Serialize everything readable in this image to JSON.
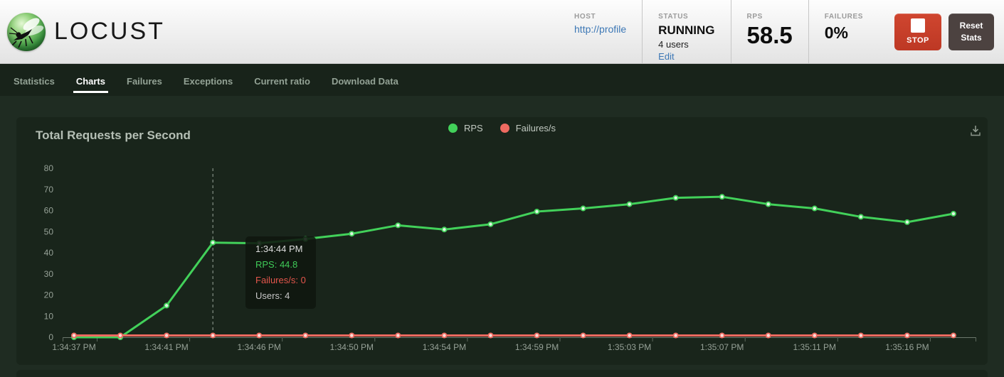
{
  "header": {
    "logo_text": "LOCUST",
    "host": {
      "label": "HOST",
      "value": "http://profile"
    },
    "status": {
      "label": "STATUS",
      "value": "RUNNING",
      "users": "4 users",
      "edit": "Edit"
    },
    "rps": {
      "label": "RPS",
      "value": "58.5"
    },
    "failures": {
      "label": "FAILURES",
      "value": "0%"
    },
    "stop_button": "STOP",
    "reset_button": "Reset Stats"
  },
  "nav": {
    "tabs": [
      {
        "label": "Statistics",
        "active": false
      },
      {
        "label": "Charts",
        "active": true
      },
      {
        "label": "Failures",
        "active": false
      },
      {
        "label": "Exceptions",
        "active": false
      },
      {
        "label": "Current ratio",
        "active": false
      },
      {
        "label": "Download Data",
        "active": false
      }
    ]
  },
  "chart": {
    "title": "Total Requests per Second",
    "legend": [
      {
        "label": "RPS",
        "color": "#42d15a"
      },
      {
        "label": "Failures/s",
        "color": "#ee6a60"
      }
    ],
    "tooltip": {
      "time": "1:34:44 PM",
      "rps_line": "RPS: 44.8",
      "failures_line": "Failures/s: 0",
      "users_line": "Users: 4"
    }
  },
  "chart_data": {
    "type": "line",
    "title": "Total Requests per Second",
    "x": [
      "1:34:37 PM",
      "1:34:39 PM",
      "1:34:41 PM",
      "1:34:44 PM",
      "1:34:46 PM",
      "1:34:48 PM",
      "1:34:50 PM",
      "1:34:52 PM",
      "1:34:54 PM",
      "1:34:57 PM",
      "1:34:59 PM",
      "1:35:01 PM",
      "1:35:03 PM",
      "1:35:05 PM",
      "1:35:07 PM",
      "1:35:09 PM",
      "1:35:11 PM",
      "1:35:14 PM",
      "1:35:16 PM",
      "1:35:18 PM"
    ],
    "x_axis_label_indices": [
      0,
      2,
      4,
      6,
      8,
      10,
      12,
      14,
      16,
      18
    ],
    "series": [
      {
        "name": "RPS",
        "color": "#42d15a",
        "values": [
          0,
          0,
          15,
          44.8,
          44.5,
          46.5,
          49,
          53,
          51,
          53.5,
          59.5,
          61,
          63,
          66,
          66.5,
          63,
          61,
          57,
          54.5,
          58.5
        ]
      },
      {
        "name": "Failures/s",
        "color": "#ee6a60",
        "values": [
          0,
          0,
          0,
          0,
          0,
          0,
          0,
          0,
          0,
          0,
          0,
          0,
          0,
          0,
          0,
          0,
          0,
          0,
          0,
          0
        ]
      }
    ],
    "ylim": [
      0,
      80
    ],
    "yticks": [
      0,
      10,
      20,
      30,
      40,
      50,
      60,
      70,
      80
    ],
    "grid": false,
    "legend_position": "top-center",
    "highlight": {
      "index": 3,
      "time": "1:34:44 PM",
      "rps": 44.8,
      "failures": 0,
      "users": 4
    }
  }
}
